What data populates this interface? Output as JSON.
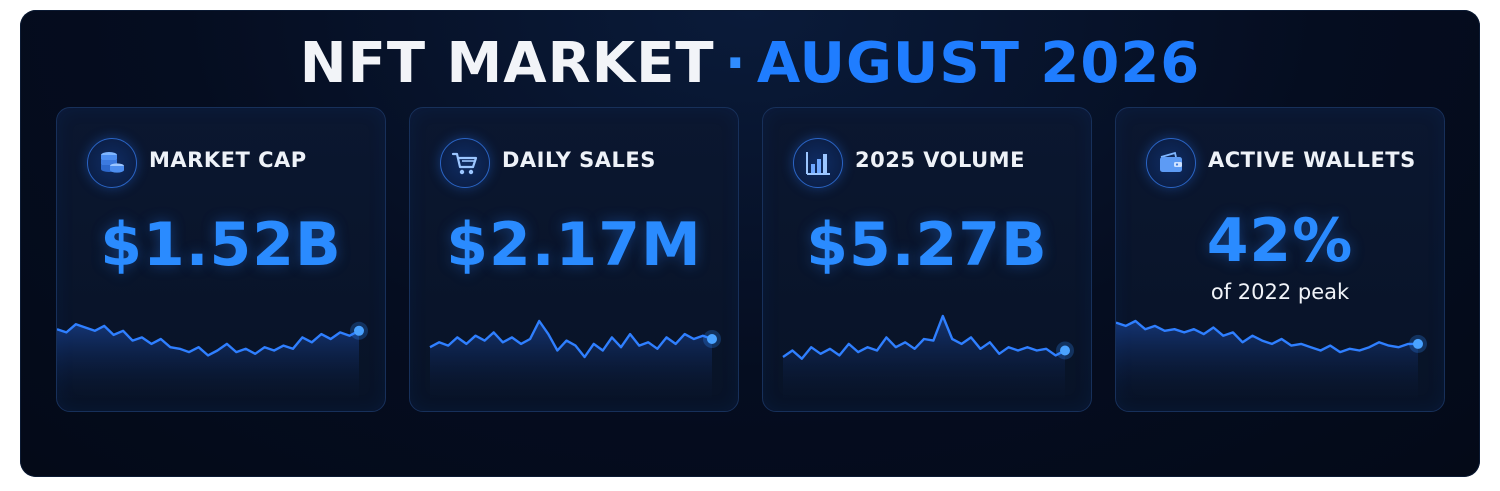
{
  "header": {
    "title_part1": "NFT MARKET",
    "separator": "·",
    "title_part2": "AUGUST 2026"
  },
  "colors": {
    "accent": "#1f7dff",
    "panel_bg": "#050d20",
    "card_border": "#17305a",
    "spark_line": "#2f7fff"
  },
  "cards": [
    {
      "icon": "coin-stack-icon",
      "label": "MARKET CAP",
      "value": "$1.52B",
      "subvalue": "",
      "spark": [
        62,
        58,
        68,
        64,
        60,
        66,
        55,
        60,
        48,
        52,
        44,
        50,
        40,
        38,
        34,
        40,
        30,
        36,
        44,
        34,
        38,
        32,
        40,
        36,
        42,
        38,
        52,
        46,
        56,
        50,
        58,
        54,
        60
      ]
    },
    {
      "icon": "shopping-cart-icon",
      "label": "DAILY SALES",
      "value": "$2.17M",
      "subvalue": "",
      "spark": [
        40,
        46,
        42,
        52,
        44,
        54,
        48,
        58,
        46,
        52,
        44,
        50,
        72,
        56,
        36,
        48,
        42,
        28,
        44,
        36,
        52,
        40,
        56,
        42,
        46,
        38,
        52,
        44,
        56,
        50,
        54,
        50
      ]
    },
    {
      "icon": "bar-chart-icon",
      "label": "2025 VOLUME",
      "value": "$5.27B",
      "subvalue": "",
      "spark": [
        28,
        36,
        26,
        40,
        32,
        38,
        30,
        44,
        34,
        40,
        36,
        52,
        40,
        46,
        38,
        50,
        48,
        78,
        50,
        44,
        52,
        38,
        46,
        32,
        40,
        36,
        40,
        36,
        38,
        30,
        36
      ]
    },
    {
      "icon": "wallet-icon",
      "label": "ACTIVE WALLETS",
      "value": "42%",
      "subvalue": "of 2022 peak",
      "spark": [
        70,
        66,
        72,
        62,
        66,
        60,
        62,
        58,
        62,
        56,
        64,
        54,
        58,
        46,
        54,
        48,
        44,
        50,
        42,
        44,
        40,
        36,
        42,
        34,
        38,
        36,
        40,
        46,
        42,
        40,
        44,
        44
      ]
    }
  ]
}
